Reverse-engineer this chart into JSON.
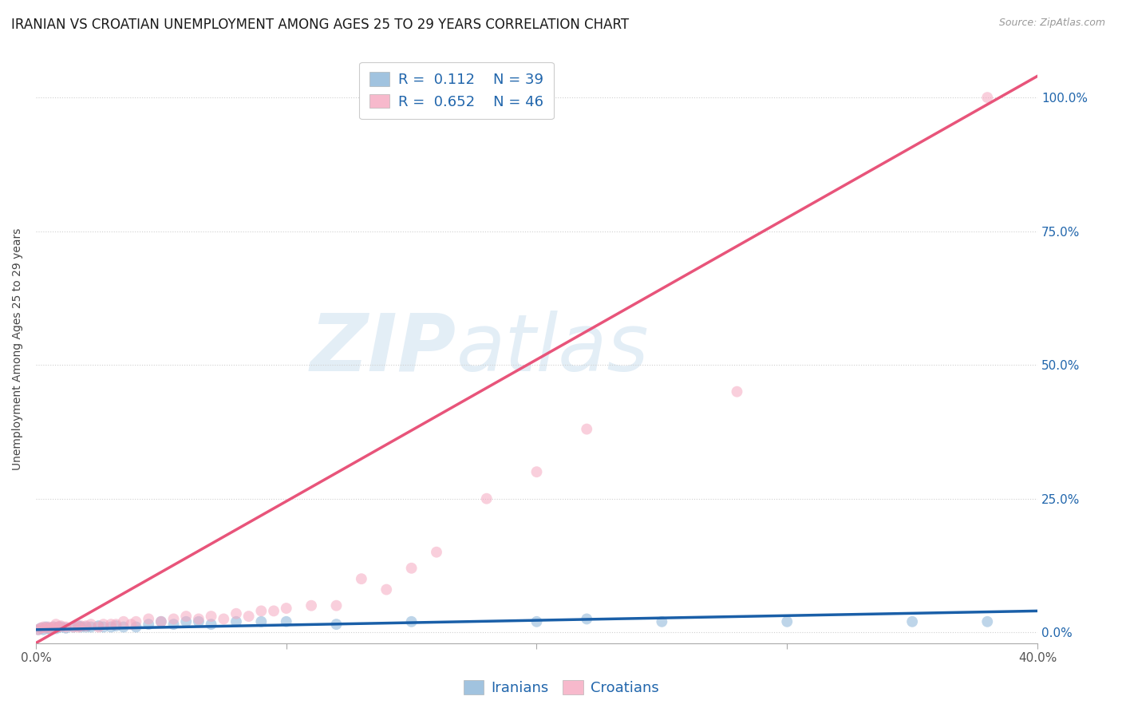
{
  "title": "IRANIAN VS CROATIAN UNEMPLOYMENT AMONG AGES 25 TO 29 YEARS CORRELATION CHART",
  "source": "Source: ZipAtlas.com",
  "ylabel": "Unemployment Among Ages 25 to 29 years",
  "xlim": [
    0.0,
    0.4
  ],
  "ylim": [
    -0.02,
    1.08
  ],
  "xticks": [
    0.0,
    0.1,
    0.2,
    0.3,
    0.4
  ],
  "xticklabels_visible": [
    "0.0%",
    "",
    "",
    "",
    "40.0%"
  ],
  "yticks": [
    0.0,
    0.25,
    0.5,
    0.75,
    1.0
  ],
  "yticklabels": [
    "0.0%",
    "25.0%",
    "50.0%",
    "75.0%",
    "100.0%"
  ],
  "iranians_R": 0.112,
  "iranians_N": 39,
  "croatians_R": 0.652,
  "croatians_N": 46,
  "blue_color": "#8ab4d8",
  "pink_color": "#f5a8c0",
  "blue_line_color": "#1a5fa8",
  "pink_line_color": "#e8547a",
  "watermark_zip": "ZIP",
  "watermark_atlas": "atlas",
  "legend_text_color": "#2166ac",
  "iranians_x": [
    0.001,
    0.002,
    0.003,
    0.004,
    0.005,
    0.006,
    0.007,
    0.008,
    0.009,
    0.01,
    0.012,
    0.015,
    0.017,
    0.018,
    0.02,
    0.022,
    0.025,
    0.027,
    0.03,
    0.032,
    0.035,
    0.04,
    0.045,
    0.05,
    0.055,
    0.06,
    0.065,
    0.07,
    0.08,
    0.09,
    0.1,
    0.12,
    0.15,
    0.2,
    0.22,
    0.25,
    0.3,
    0.35,
    0.38
  ],
  "iranians_y": [
    0.005,
    0.008,
    0.005,
    0.01,
    0.008,
    0.005,
    0.01,
    0.007,
    0.01,
    0.01,
    0.008,
    0.01,
    0.012,
    0.01,
    0.01,
    0.01,
    0.012,
    0.01,
    0.01,
    0.012,
    0.01,
    0.01,
    0.015,
    0.02,
    0.015,
    0.02,
    0.02,
    0.015,
    0.02,
    0.02,
    0.02,
    0.015,
    0.02,
    0.02,
    0.025,
    0.02,
    0.02,
    0.02,
    0.02
  ],
  "croatians_x": [
    0.001,
    0.002,
    0.003,
    0.004,
    0.005,
    0.006,
    0.007,
    0.008,
    0.009,
    0.01,
    0.012,
    0.015,
    0.017,
    0.018,
    0.02,
    0.022,
    0.025,
    0.027,
    0.03,
    0.032,
    0.035,
    0.038,
    0.04,
    0.045,
    0.05,
    0.055,
    0.06,
    0.065,
    0.07,
    0.075,
    0.08,
    0.085,
    0.09,
    0.095,
    0.1,
    0.11,
    0.12,
    0.13,
    0.14,
    0.15,
    0.16,
    0.18,
    0.2,
    0.22,
    0.28,
    0.38
  ],
  "croatians_y": [
    0.005,
    0.008,
    0.01,
    0.008,
    0.01,
    0.008,
    0.01,
    0.015,
    0.01,
    0.012,
    0.01,
    0.01,
    0.01,
    0.012,
    0.012,
    0.015,
    0.01,
    0.015,
    0.015,
    0.015,
    0.02,
    0.015,
    0.02,
    0.025,
    0.02,
    0.025,
    0.03,
    0.025,
    0.03,
    0.025,
    0.035,
    0.03,
    0.04,
    0.04,
    0.045,
    0.05,
    0.05,
    0.1,
    0.08,
    0.12,
    0.15,
    0.25,
    0.3,
    0.38,
    0.45,
    1.0
  ],
  "title_fontsize": 12,
  "axis_fontsize": 10,
  "tick_fontsize": 11,
  "legend_fontsize": 13,
  "marker_size": 100,
  "marker_alpha": 0.55,
  "line_width": 2.5,
  "background_color": "#ffffff",
  "grid_color": "#d0d0d0",
  "grid_style": ":"
}
